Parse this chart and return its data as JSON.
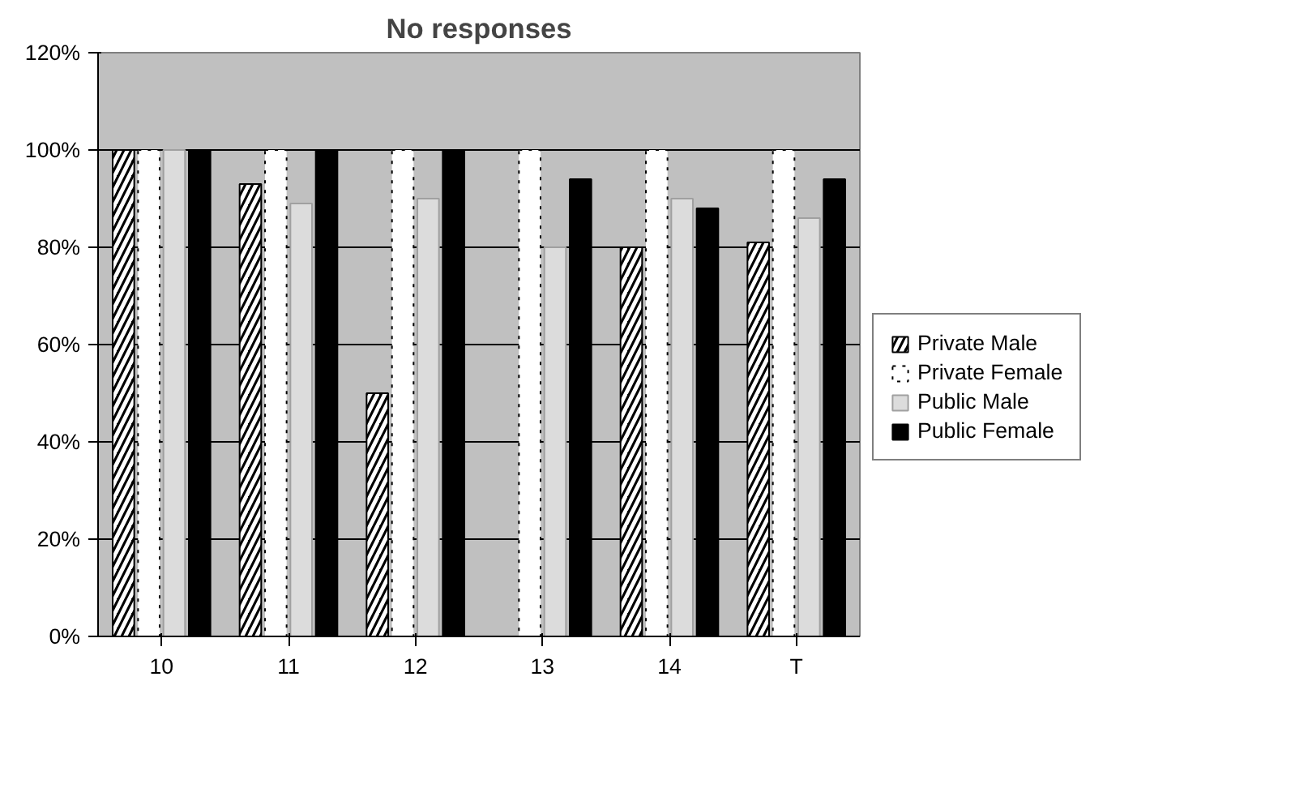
{
  "chart_data": {
    "type": "bar",
    "title": "No responses",
    "categories": [
      "10",
      "11",
      "12",
      "13",
      "14",
      "T"
    ],
    "series": [
      {
        "name": "Private Male",
        "color": "#000000",
        "values": [
          100,
          93,
          50,
          0,
          80,
          81
        ]
      },
      {
        "name": "Private Female",
        "color": "#ffffff",
        "values": [
          100,
          100,
          100,
          100,
          100,
          100
        ]
      },
      {
        "name": "Public Male",
        "color": "#dcdcdc",
        "values": [
          100,
          89,
          90,
          80,
          90,
          86
        ]
      },
      {
        "name": "Public Female",
        "color": "#000000",
        "values": [
          100,
          100,
          100,
          94,
          88,
          94
        ]
      }
    ],
    "ylim": [
      0,
      120
    ],
    "yticks": [
      {
        "value": 0,
        "label": "0%"
      },
      {
        "value": 20,
        "label": "20%"
      },
      {
        "value": 40,
        "label": "40%"
      },
      {
        "value": 60,
        "label": "60%"
      },
      {
        "value": 80,
        "label": "80%"
      },
      {
        "value": 100,
        "label": "100%"
      },
      {
        "value": 120,
        "label": "120%"
      }
    ],
    "grid": "y",
    "legend": "right"
  }
}
